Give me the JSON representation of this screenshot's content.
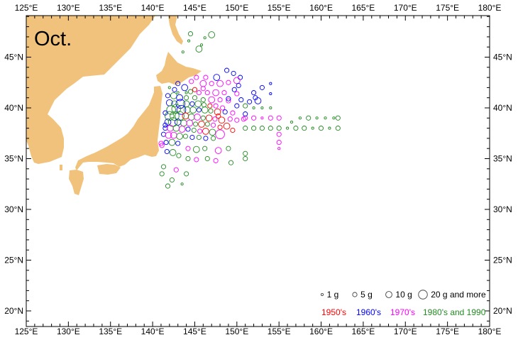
{
  "title": "Oct.",
  "axes": {
    "lon_labels": [
      "125°E",
      "130°E",
      "135°E",
      "140°E",
      "145°E",
      "150°E",
      "155°E",
      "160°E",
      "165°E",
      "170°E",
      "175°E",
      "180°E"
    ],
    "lon_values": [
      125,
      130,
      135,
      140,
      145,
      150,
      155,
      160,
      165,
      170,
      175,
      180
    ],
    "lat_labels": [
      "20°N",
      "25°N",
      "30°N",
      "35°N",
      "40°N",
      "45°N"
    ],
    "lat_values": [
      20,
      25,
      30,
      35,
      40,
      45
    ]
  },
  "land_color": "#f1c27b",
  "legend": {
    "sizes": [
      {
        "label": "1 g",
        "g": 1
      },
      {
        "label": "5 g",
        "g": 5
      },
      {
        "label": "10 g",
        "g": 10
      },
      {
        "label": "20 g and more",
        "g": 20
      }
    ],
    "decades": [
      {
        "label": "1950's",
        "key": "50",
        "color": "#ff0000"
      },
      {
        "label": "1960's",
        "key": "60",
        "color": "#0000ff"
      },
      {
        "label": "1970's",
        "key": "70",
        "color": "#ff00ff"
      },
      {
        "label": "1980's and 1990",
        "key": "80",
        "color": "#228b22"
      }
    ]
  },
  "chart_data": {
    "type": "scatter",
    "x_field": "longitude (°E)",
    "y_field": "latitude (°N)",
    "xlim": [
      125,
      180
    ],
    "ylim": [
      18.5,
      49
    ],
    "point_format": [
      "lon",
      "lat",
      "grams",
      "decade"
    ],
    "points": [
      [
        144.5,
        47.3,
        5,
        "80"
      ],
      [
        147.0,
        47.2,
        10,
        "80"
      ],
      [
        144.3,
        46.6,
        1,
        "80"
      ],
      [
        145.5,
        45.8,
        10,
        "80"
      ],
      [
        143.6,
        45.5,
        1,
        "80"
      ],
      [
        146.2,
        46.9,
        1,
        "80"
      ],
      [
        145.8,
        46.2,
        1,
        "80"
      ],
      [
        148.8,
        43.7,
        5,
        "60"
      ],
      [
        149.6,
        43.4,
        5,
        "60"
      ],
      [
        150.4,
        43.0,
        5,
        "60"
      ],
      [
        147.6,
        43.0,
        10,
        "60"
      ],
      [
        146.3,
        43.0,
        5,
        "70"
      ],
      [
        145.2,
        43.0,
        5,
        "70"
      ],
      [
        144.6,
        42.6,
        5,
        "70"
      ],
      [
        150.0,
        42.7,
        10,
        "70"
      ],
      [
        150.2,
        42.2,
        5,
        "60"
      ],
      [
        149.0,
        42.5,
        5,
        "70"
      ],
      [
        148.0,
        42.4,
        10,
        "70"
      ],
      [
        147.0,
        42.4,
        5,
        "70"
      ],
      [
        146.0,
        42.4,
        10,
        "70"
      ],
      [
        143.0,
        42.4,
        5,
        "60"
      ],
      [
        143.8,
        42.0,
        10,
        "60"
      ],
      [
        142.6,
        41.8,
        5,
        "60"
      ],
      [
        144.5,
        41.6,
        5,
        "80"
      ],
      [
        145.5,
        41.5,
        5,
        "70"
      ],
      [
        146.5,
        41.5,
        5,
        "70"
      ],
      [
        147.5,
        41.5,
        10,
        "70"
      ],
      [
        148.5,
        41.5,
        5,
        "70"
      ],
      [
        149.7,
        41.8,
        5,
        "60"
      ],
      [
        150.0,
        41.4,
        5,
        "70"
      ],
      [
        141.8,
        41.2,
        5,
        "60"
      ],
      [
        142.5,
        41.2,
        10,
        "80"
      ],
      [
        143.2,
        41.0,
        10,
        "60"
      ],
      [
        144.0,
        41.0,
        5,
        "80"
      ],
      [
        145.0,
        41.0,
        5,
        "80"
      ],
      [
        146.0,
        40.8,
        5,
        "80"
      ],
      [
        147.0,
        40.8,
        10,
        "70"
      ],
      [
        148.0,
        40.8,
        5,
        "70"
      ],
      [
        149.0,
        40.7,
        5,
        "70"
      ],
      [
        150.5,
        40.8,
        5,
        "60"
      ],
      [
        142.0,
        40.5,
        10,
        "60"
      ],
      [
        142.6,
        40.4,
        10,
        "80"
      ],
      [
        143.3,
        40.4,
        20,
        "60"
      ],
      [
        144.0,
        40.4,
        10,
        "80"
      ],
      [
        144.7,
        40.4,
        5,
        "60"
      ],
      [
        145.4,
        40.4,
        10,
        "80"
      ],
      [
        146.1,
        40.3,
        5,
        "80"
      ],
      [
        146.8,
        40.2,
        5,
        "50"
      ],
      [
        147.5,
        40.2,
        5,
        "70"
      ],
      [
        148.3,
        40.0,
        5,
        "70"
      ],
      [
        142.2,
        39.8,
        20,
        "80"
      ],
      [
        142.8,
        39.9,
        20,
        "80"
      ],
      [
        143.4,
        39.8,
        20,
        "60"
      ],
      [
        144.1,
        39.8,
        10,
        "80"
      ],
      [
        144.8,
        39.8,
        10,
        "80"
      ],
      [
        145.5,
        39.8,
        5,
        "60"
      ],
      [
        146.2,
        39.8,
        10,
        "80"
      ],
      [
        146.9,
        39.7,
        5,
        "80"
      ],
      [
        147.7,
        39.6,
        10,
        "50"
      ],
      [
        148.6,
        39.6,
        5,
        "60"
      ],
      [
        149.5,
        39.5,
        5,
        "70"
      ],
      [
        142.0,
        39.2,
        20,
        "80"
      ],
      [
        142.6,
        39.2,
        20,
        "80"
      ],
      [
        143.2,
        39.2,
        20,
        "80"
      ],
      [
        143.9,
        39.2,
        10,
        "50"
      ],
      [
        144.6,
        39.1,
        10,
        "80"
      ],
      [
        145.3,
        39.1,
        10,
        "70"
      ],
      [
        146.0,
        39.0,
        5,
        "80"
      ],
      [
        146.7,
        39.0,
        10,
        "50"
      ],
      [
        147.4,
        38.9,
        5,
        "70"
      ],
      [
        148.2,
        38.8,
        10,
        "50"
      ],
      [
        149.2,
        38.9,
        5,
        "70"
      ],
      [
        150.0,
        38.8,
        5,
        "70"
      ],
      [
        150.8,
        38.9,
        5,
        "70"
      ],
      [
        141.8,
        38.6,
        10,
        "60"
      ],
      [
        142.4,
        38.6,
        20,
        "80"
      ],
      [
        143.0,
        38.6,
        10,
        "60"
      ],
      [
        143.7,
        38.5,
        10,
        "80"
      ],
      [
        144.4,
        38.5,
        10,
        "70"
      ],
      [
        145.1,
        38.4,
        5,
        "80"
      ],
      [
        145.8,
        38.4,
        10,
        "50"
      ],
      [
        146.5,
        38.4,
        5,
        "80"
      ],
      [
        147.2,
        38.3,
        5,
        "70"
      ],
      [
        148.0,
        38.1,
        5,
        "50"
      ],
      [
        141.5,
        38.0,
        5,
        "60"
      ],
      [
        142.1,
        38.0,
        10,
        "70"
      ],
      [
        142.8,
        38.0,
        10,
        "80"
      ],
      [
        143.5,
        37.9,
        10,
        "70"
      ],
      [
        144.2,
        37.9,
        5,
        "60"
      ],
      [
        144.9,
        37.8,
        5,
        "80"
      ],
      [
        145.6,
        37.7,
        5,
        "70"
      ],
      [
        146.3,
        37.7,
        10,
        "50"
      ],
      [
        147.1,
        37.6,
        10,
        "80"
      ],
      [
        148.0,
        37.4,
        20,
        "70"
      ],
      [
        141.3,
        37.4,
        5,
        "60"
      ],
      [
        141.9,
        37.3,
        10,
        "70"
      ],
      [
        142.5,
        37.3,
        10,
        "70"
      ],
      [
        143.2,
        37.2,
        10,
        "80"
      ],
      [
        143.9,
        37.2,
        5,
        "80"
      ],
      [
        144.7,
        37.1,
        5,
        "60"
      ],
      [
        145.5,
        37.1,
        5,
        "80"
      ],
      [
        146.3,
        37.0,
        5,
        "60"
      ],
      [
        147.2,
        37.0,
        5,
        "80"
      ],
      [
        141.0,
        36.5,
        5,
        "70"
      ],
      [
        141.1,
        36.3,
        5,
        "70"
      ],
      [
        141.6,
        36.6,
        5,
        "60"
      ],
      [
        142.3,
        36.6,
        10,
        "80"
      ],
      [
        143.0,
        36.5,
        5,
        "60"
      ],
      [
        144.2,
        36.0,
        5,
        "70"
      ],
      [
        145.2,
        35.9,
        10,
        "80"
      ],
      [
        146.2,
        36.0,
        5,
        "80"
      ],
      [
        147.8,
        35.8,
        10,
        "70"
      ],
      [
        149.0,
        36.0,
        5,
        "80"
      ],
      [
        141.7,
        35.7,
        5,
        "60"
      ],
      [
        142.4,
        35.6,
        10,
        "80"
      ],
      [
        143.1,
        35.3,
        5,
        "80"
      ],
      [
        144.2,
        35.0,
        5,
        "80"
      ],
      [
        145.2,
        34.9,
        5,
        "70"
      ],
      [
        146.5,
        35.0,
        5,
        "80"
      ],
      [
        147.5,
        34.8,
        5,
        "70"
      ],
      [
        149.3,
        34.6,
        5,
        "80"
      ],
      [
        141.3,
        34.2,
        5,
        "80"
      ],
      [
        142.8,
        33.9,
        5,
        "70"
      ],
      [
        144.0,
        33.5,
        5,
        "80"
      ],
      [
        141.1,
        33.5,
        5,
        "80"
      ],
      [
        142.3,
        32.9,
        5,
        "80"
      ],
      [
        143.5,
        32.5,
        1,
        "80"
      ],
      [
        141.8,
        32.3,
        5,
        "80"
      ],
      [
        151.0,
        38.0,
        5,
        "80"
      ],
      [
        152.0,
        38.0,
        5,
        "80"
      ],
      [
        153.0,
        38.0,
        5,
        "80"
      ],
      [
        154.0,
        38.0,
        5,
        "80"
      ],
      [
        155.0,
        38.0,
        5,
        "80"
      ],
      [
        156.0,
        38.0,
        1,
        "80"
      ],
      [
        157.0,
        38.0,
        5,
        "80"
      ],
      [
        158.0,
        38.0,
        5,
        "80"
      ],
      [
        159.0,
        38.0,
        1,
        "80"
      ],
      [
        160.0,
        38.0,
        5,
        "80"
      ],
      [
        161.0,
        38.0,
        1,
        "80"
      ],
      [
        162.0,
        38.0,
        5,
        "80"
      ],
      [
        156.5,
        38.6,
        1,
        "80"
      ],
      [
        157.5,
        39.0,
        1,
        "80"
      ],
      [
        158.5,
        39.0,
        5,
        "80"
      ],
      [
        159.5,
        39.0,
        1,
        "80"
      ],
      [
        160.5,
        39.0,
        1,
        "80"
      ],
      [
        161.5,
        39.0,
        1,
        "80"
      ],
      [
        162.0,
        39.0,
        5,
        "80"
      ],
      [
        151.0,
        39.0,
        5,
        "70"
      ],
      [
        152.0,
        39.0,
        5,
        "70"
      ],
      [
        153.0,
        39.0,
        1,
        "70"
      ],
      [
        154.0,
        39.0,
        5,
        "70"
      ],
      [
        155.0,
        39.0,
        5,
        "70"
      ],
      [
        155.0,
        37.4,
        5,
        "70"
      ],
      [
        155.0,
        36.6,
        5,
        "70"
      ],
      [
        155.0,
        36.0,
        1,
        "70"
      ],
      [
        151.0,
        35.5,
        5,
        "80"
      ],
      [
        151.0,
        35.0,
        5,
        "80"
      ],
      [
        151.0,
        40.2,
        5,
        "80"
      ],
      [
        152.0,
        40.0,
        1,
        "80"
      ],
      [
        153.0,
        40.0,
        1,
        "80"
      ],
      [
        154.0,
        40.0,
        1,
        "80"
      ],
      [
        152.5,
        40.7,
        10,
        "60"
      ],
      [
        152.0,
        41.5,
        5,
        "60"
      ],
      [
        153.0,
        42.0,
        5,
        "60"
      ],
      [
        154.0,
        42.4,
        1,
        "60"
      ],
      [
        154.0,
        41.4,
        1,
        "60"
      ],
      [
        151.5,
        40.6,
        5,
        "60"
      ],
      [
        152.2,
        41.0,
        5,
        "60"
      ],
      [
        150.0,
        40.2,
        5,
        "60"
      ],
      [
        149.0,
        40.9,
        5,
        "60"
      ],
      [
        151.0,
        39.4,
        5,
        "60"
      ],
      [
        142.0,
        42.0,
        1,
        "80"
      ],
      [
        143.0,
        41.5,
        1,
        "80"
      ],
      [
        144.0,
        41.5,
        1,
        "80"
      ],
      [
        145.0,
        41.8,
        5,
        "50"
      ],
      [
        146.0,
        41.9,
        5,
        "70"
      ],
      [
        141.5,
        39.5,
        5,
        "60"
      ],
      [
        141.5,
        38.3,
        5,
        "60"
      ],
      [
        148.8,
        38.2,
        10,
        "50"
      ],
      [
        149.5,
        37.8,
        5,
        "50"
      ],
      [
        147.8,
        39.2,
        5,
        "50"
      ]
    ]
  }
}
